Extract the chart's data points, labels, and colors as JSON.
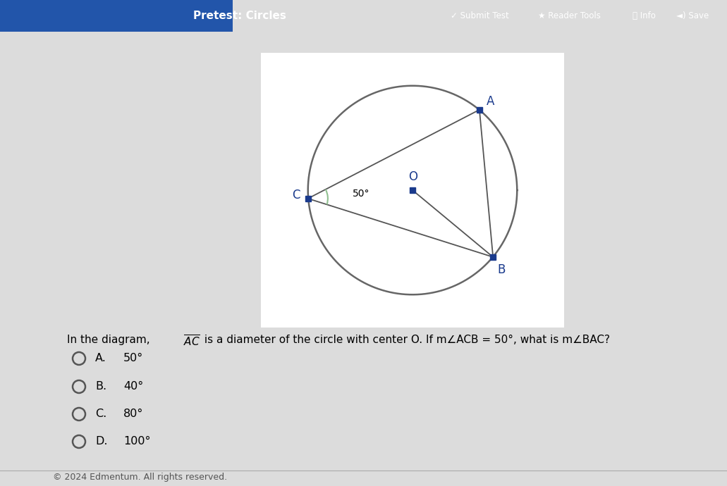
{
  "bg_color": "#dcdcdc",
  "diagram_bg": "#ffffff",
  "top_bar_color": "#4a90c4",
  "top_bar_text": "Pretest: Circles",
  "circle_color": "#666666",
  "point_color": "#1a3a8c",
  "line_color": "#555555",
  "angle_arc_color": "#90c090",
  "angle_label": "50°",
  "points": {
    "C": [
      -1.0,
      -0.08
    ],
    "A": [
      0.64,
      0.77
    ],
    "O": [
      0.0,
      0.0
    ],
    "B": [
      0.77,
      -0.64
    ]
  },
  "question_text_parts": [
    "In the diagram, ",
    "AC",
    " is a diameter of the circle with center O. If m∠ACB = 50°, what is m∠BAC?"
  ],
  "choices": [
    {
      "label": "A.",
      "text": "50°"
    },
    {
      "label": "B.",
      "text": "40°"
    },
    {
      "label": "C.",
      "text": "80°"
    },
    {
      "label": "D.",
      "text": "100°"
    }
  ],
  "footer_text": "© 2024 Edmentum. All rights reserved."
}
